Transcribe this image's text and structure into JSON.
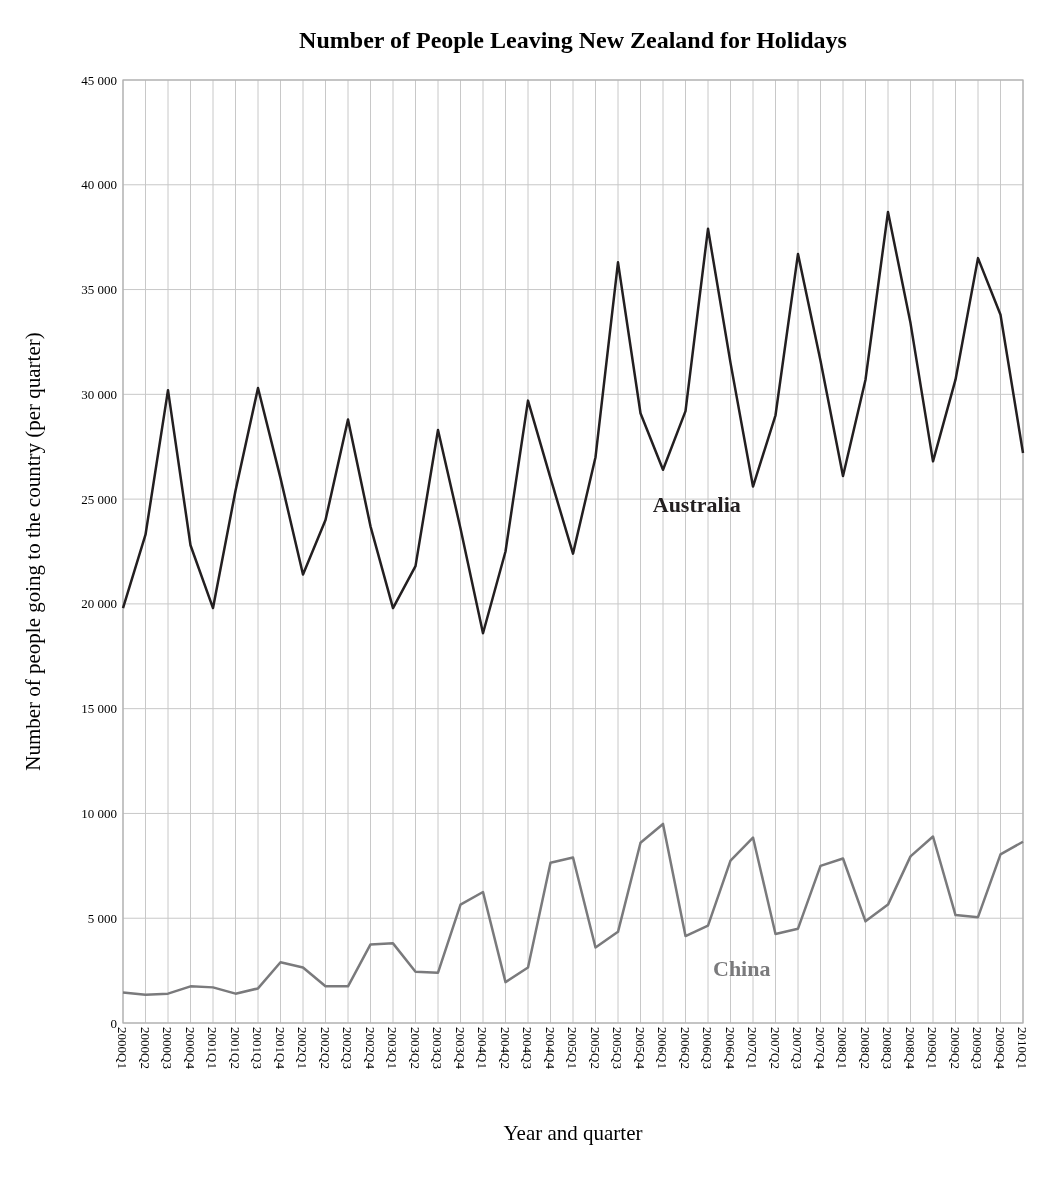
{
  "chart_data": {
    "type": "line",
    "title": "Number of People Leaving New Zealand for Holidays",
    "xlabel": "Year and quarter",
    "ylabel": "Number of people going to the country (per quarter)",
    "categories": [
      "2000Q1",
      "2000Q2",
      "2000Q3",
      "2000Q4",
      "2001Q1",
      "2001Q2",
      "2001Q3",
      "2001Q4",
      "2002Q1",
      "2002Q2",
      "2002Q3",
      "2002Q4",
      "2003Q1",
      "2003Q2",
      "2003Q3",
      "2003Q4",
      "2004Q1",
      "2004Q2",
      "2004Q3",
      "2004Q4",
      "2005Q1",
      "2005Q2",
      "2005Q3",
      "2005Q4",
      "2006Q1",
      "2006Q2",
      "2006Q3",
      "2006Q4",
      "2007Q1",
      "2007Q2",
      "2007Q3",
      "2007Q4",
      "2008Q1",
      "2008Q2",
      "2008Q3",
      "2008Q4",
      "2009Q1",
      "2009Q2",
      "2009Q3",
      "2009Q4",
      "2010Q1"
    ],
    "series": [
      {
        "name": "Australia",
        "color": "#231f20",
        "values": [
          19800,
          23300,
          30200,
          22800,
          19800,
          25400,
          30300,
          26000,
          21400,
          24000,
          28800,
          23700,
          19800,
          21800,
          28300,
          23600,
          18600,
          22500,
          29700,
          26000,
          22400,
          27000,
          36300,
          29100,
          26400,
          29200,
          37900,
          31500,
          25600,
          29000,
          36700,
          31600,
          26100,
          30700,
          38700,
          33400,
          26800,
          30700,
          36500,
          33800,
          27200
        ]
      },
      {
        "name": "China",
        "color": "#7a7a7c",
        "values": [
          1450,
          1350,
          1400,
          1750,
          1700,
          1400,
          1650,
          2900,
          2650,
          1750,
          1750,
          3750,
          3800,
          2450,
          2400,
          5650,
          6250,
          1950,
          2650,
          7650,
          7900,
          3600,
          4350,
          8600,
          9500,
          4150,
          4650,
          7750,
          8850,
          4250,
          4500,
          7500,
          7850,
          4850,
          5650,
          7950,
          8900,
          5150,
          5050,
          8050,
          8650
        ]
      }
    ],
    "ylim": [
      0,
      45000
    ],
    "yticks": [
      0,
      {
        "value": 5000,
        "label": "5 000"
      },
      {
        "value": 10000,
        "label": "10 000"
      },
      {
        "value": 15000,
        "label": "15 000"
      },
      {
        "value": 20000,
        "label": "20 000"
      },
      {
        "value": 25000,
        "label": "25 000"
      },
      {
        "value": 30000,
        "label": "30 000"
      },
      {
        "value": 35000,
        "label": "35 000"
      },
      {
        "value": 40000,
        "label": "40 000"
      },
      {
        "value": 45000,
        "label": "45 000"
      }
    ],
    "grid": true,
    "marker": "none",
    "line_style": "solid"
  }
}
